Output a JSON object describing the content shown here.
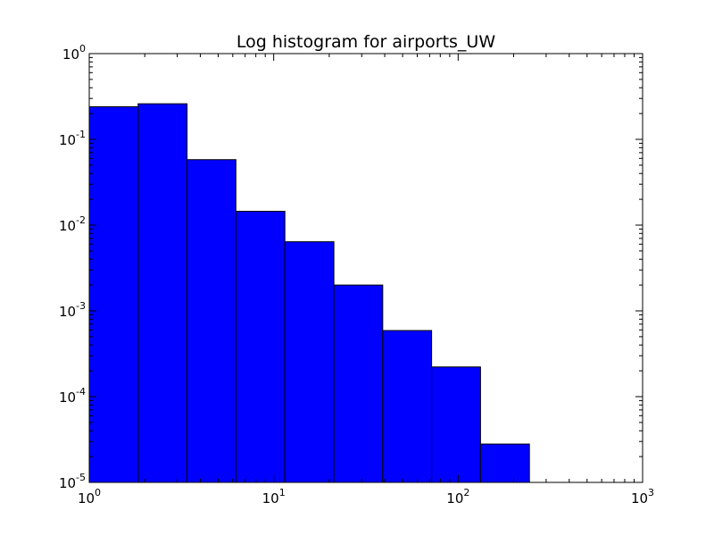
{
  "chart_data": {
    "type": "bar",
    "title": "Log histogram for airports_UW",
    "xlabel": "",
    "ylabel": "",
    "xscale": "log",
    "yscale": "log",
    "xlim": [
      1,
      1000
    ],
    "ylim": [
      1e-05,
      1
    ],
    "bin_edges": [
      1.0,
      1.84,
      3.39,
      6.24,
      11.5,
      21.2,
      39.0,
      71.8,
      132.2,
      243.5
    ],
    "values": [
      0.24,
      0.26,
      0.058,
      0.0145,
      0.0064,
      0.002,
      0.00059,
      0.000222,
      2.8e-05
    ],
    "x_ticks": [
      {
        "value": 1,
        "base": "10",
        "exp": "0"
      },
      {
        "value": 10,
        "base": "10",
        "exp": "1"
      },
      {
        "value": 100,
        "base": "10",
        "exp": "2"
      },
      {
        "value": 1000,
        "base": "10",
        "exp": "3"
      }
    ],
    "y_ticks": [
      {
        "value": 1,
        "base": "10",
        "exp": "0"
      },
      {
        "value": 0.1,
        "base": "10",
        "exp": "-1"
      },
      {
        "value": 0.01,
        "base": "10",
        "exp": "-2"
      },
      {
        "value": 0.001,
        "base": "10",
        "exp": "-3"
      },
      {
        "value": 0.0001,
        "base": "10",
        "exp": "-4"
      },
      {
        "value": 1e-05,
        "base": "10",
        "exp": "-5"
      }
    ],
    "grid": false,
    "colors": {
      "bar_fill": "#0000ff",
      "bar_edge": "#000000",
      "axes": "#000000"
    }
  }
}
